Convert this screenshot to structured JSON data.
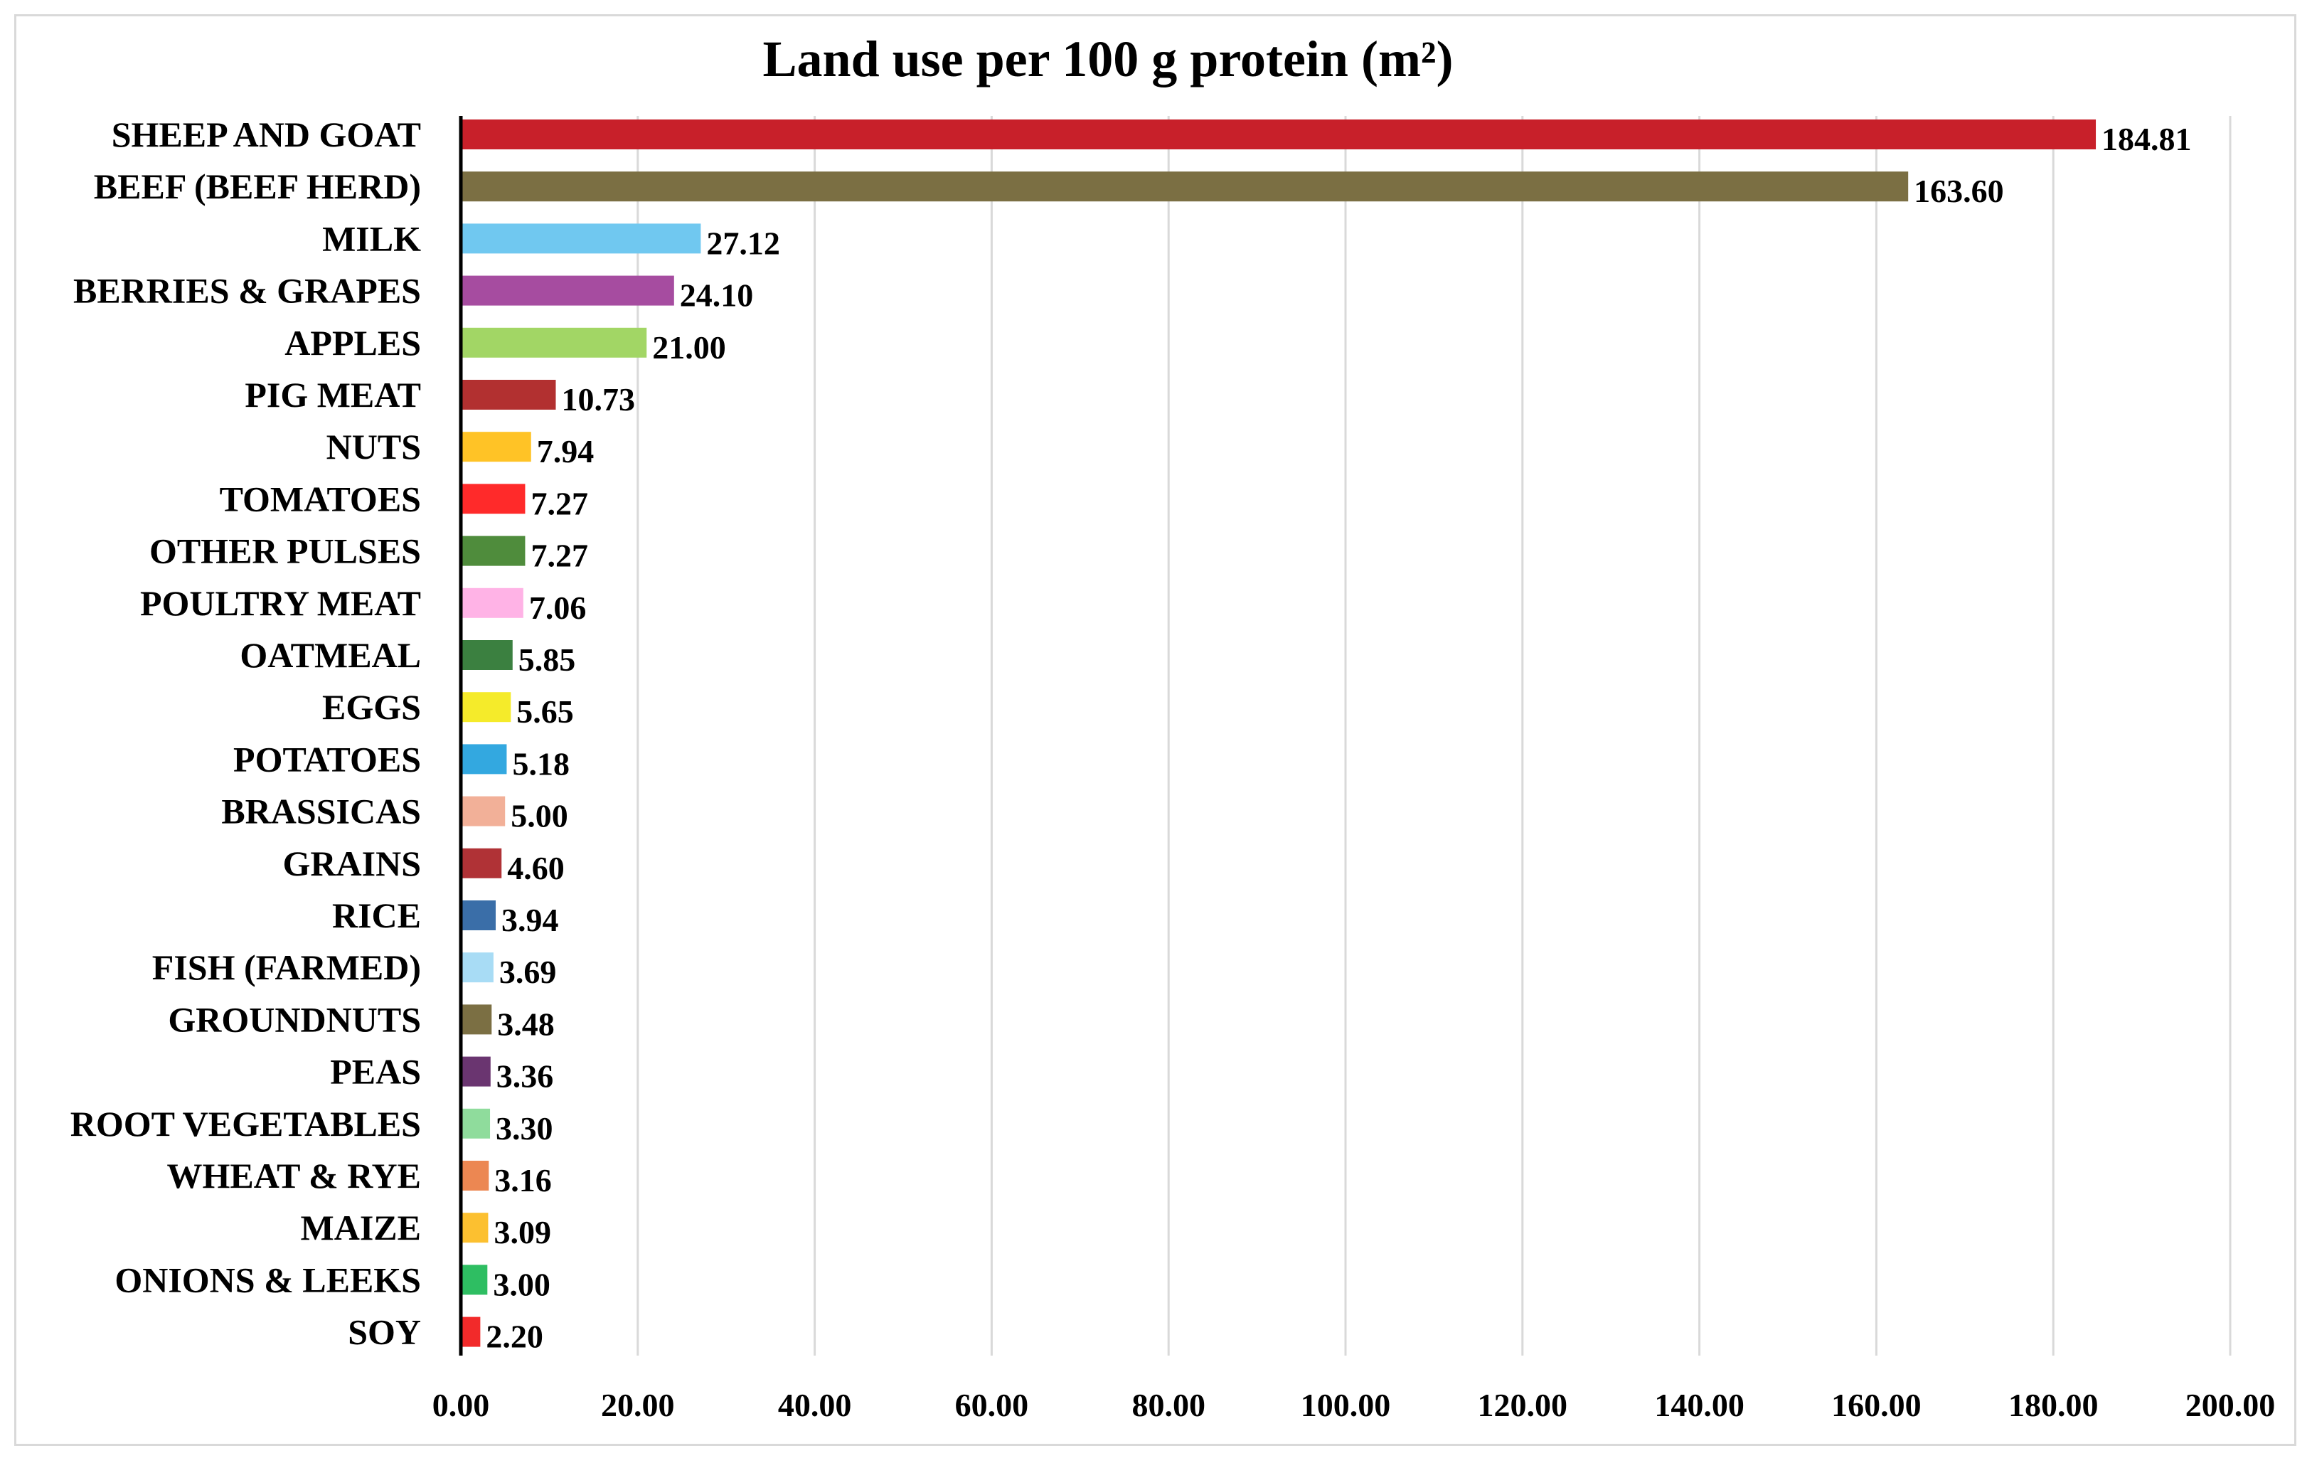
{
  "chart_data": {
    "type": "bar",
    "orientation": "horizontal",
    "title": "Land use per 100 g protein (m²)",
    "xlabel": "",
    "ylabel": "",
    "xlim": [
      0,
      200
    ],
    "x_ticks": [
      0,
      20,
      40,
      60,
      80,
      100,
      120,
      140,
      160,
      180,
      200
    ],
    "x_tick_labels": [
      "0.00",
      "20.00",
      "40.00",
      "60.00",
      "80.00",
      "100.00",
      "120.00",
      "140.00",
      "160.00",
      "180.00",
      "200.00"
    ],
    "grid": true,
    "categories": [
      "SHEEP AND GOAT",
      "BEEF (BEEF HERD)",
      "MILK",
      "BERRIES & GRAPES",
      "APPLES",
      "PIG MEAT",
      "NUTS",
      "TOMATOES",
      "OTHER PULSES",
      "POULTRY MEAT",
      "OATMEAL",
      "EGGS",
      "POTATOES",
      "BRASSICAS",
      "GRAINS",
      "RICE",
      "FISH (FARMED)",
      "GROUNDNUTS",
      "PEAS",
      "ROOT VEGETABLES",
      "WHEAT & RYE",
      "MAIZE",
      "ONIONS & LEEKS",
      "SOY"
    ],
    "values": [
      184.81,
      163.6,
      27.12,
      24.1,
      21.0,
      10.73,
      7.94,
      7.27,
      7.27,
      7.06,
      5.85,
      5.65,
      5.18,
      5.0,
      4.6,
      3.94,
      3.69,
      3.48,
      3.36,
      3.3,
      3.16,
      3.09,
      3.0,
      2.2
    ],
    "value_labels": [
      "184.81",
      "163.60",
      "27.12",
      "24.10",
      "21.00",
      "10.73",
      "7.94",
      "7.27",
      "7.27",
      "7.06",
      "5.85",
      "5.65",
      "5.18",
      "5.00",
      "4.60",
      "3.94",
      "3.69",
      "3.48",
      "3.36",
      "3.30",
      "3.16",
      "3.09",
      "3.00",
      "2.20"
    ],
    "colors": [
      "#c8202a",
      "#7b6f43",
      "#70c8f0",
      "#a64ca0",
      "#a2d665",
      "#b23030",
      "#ffc326",
      "#ff2a2a",
      "#4f8c3c",
      "#ffb3e6",
      "#3b8040",
      "#f5eb2a",
      "#33a8e0",
      "#f2b098",
      "#b03236",
      "#3a6ea8",
      "#a8dcf5",
      "#7b6f43",
      "#6a3570",
      "#8fdc9c",
      "#ec8752",
      "#fcc030",
      "#2ebe62",
      "#f22a2a"
    ]
  }
}
